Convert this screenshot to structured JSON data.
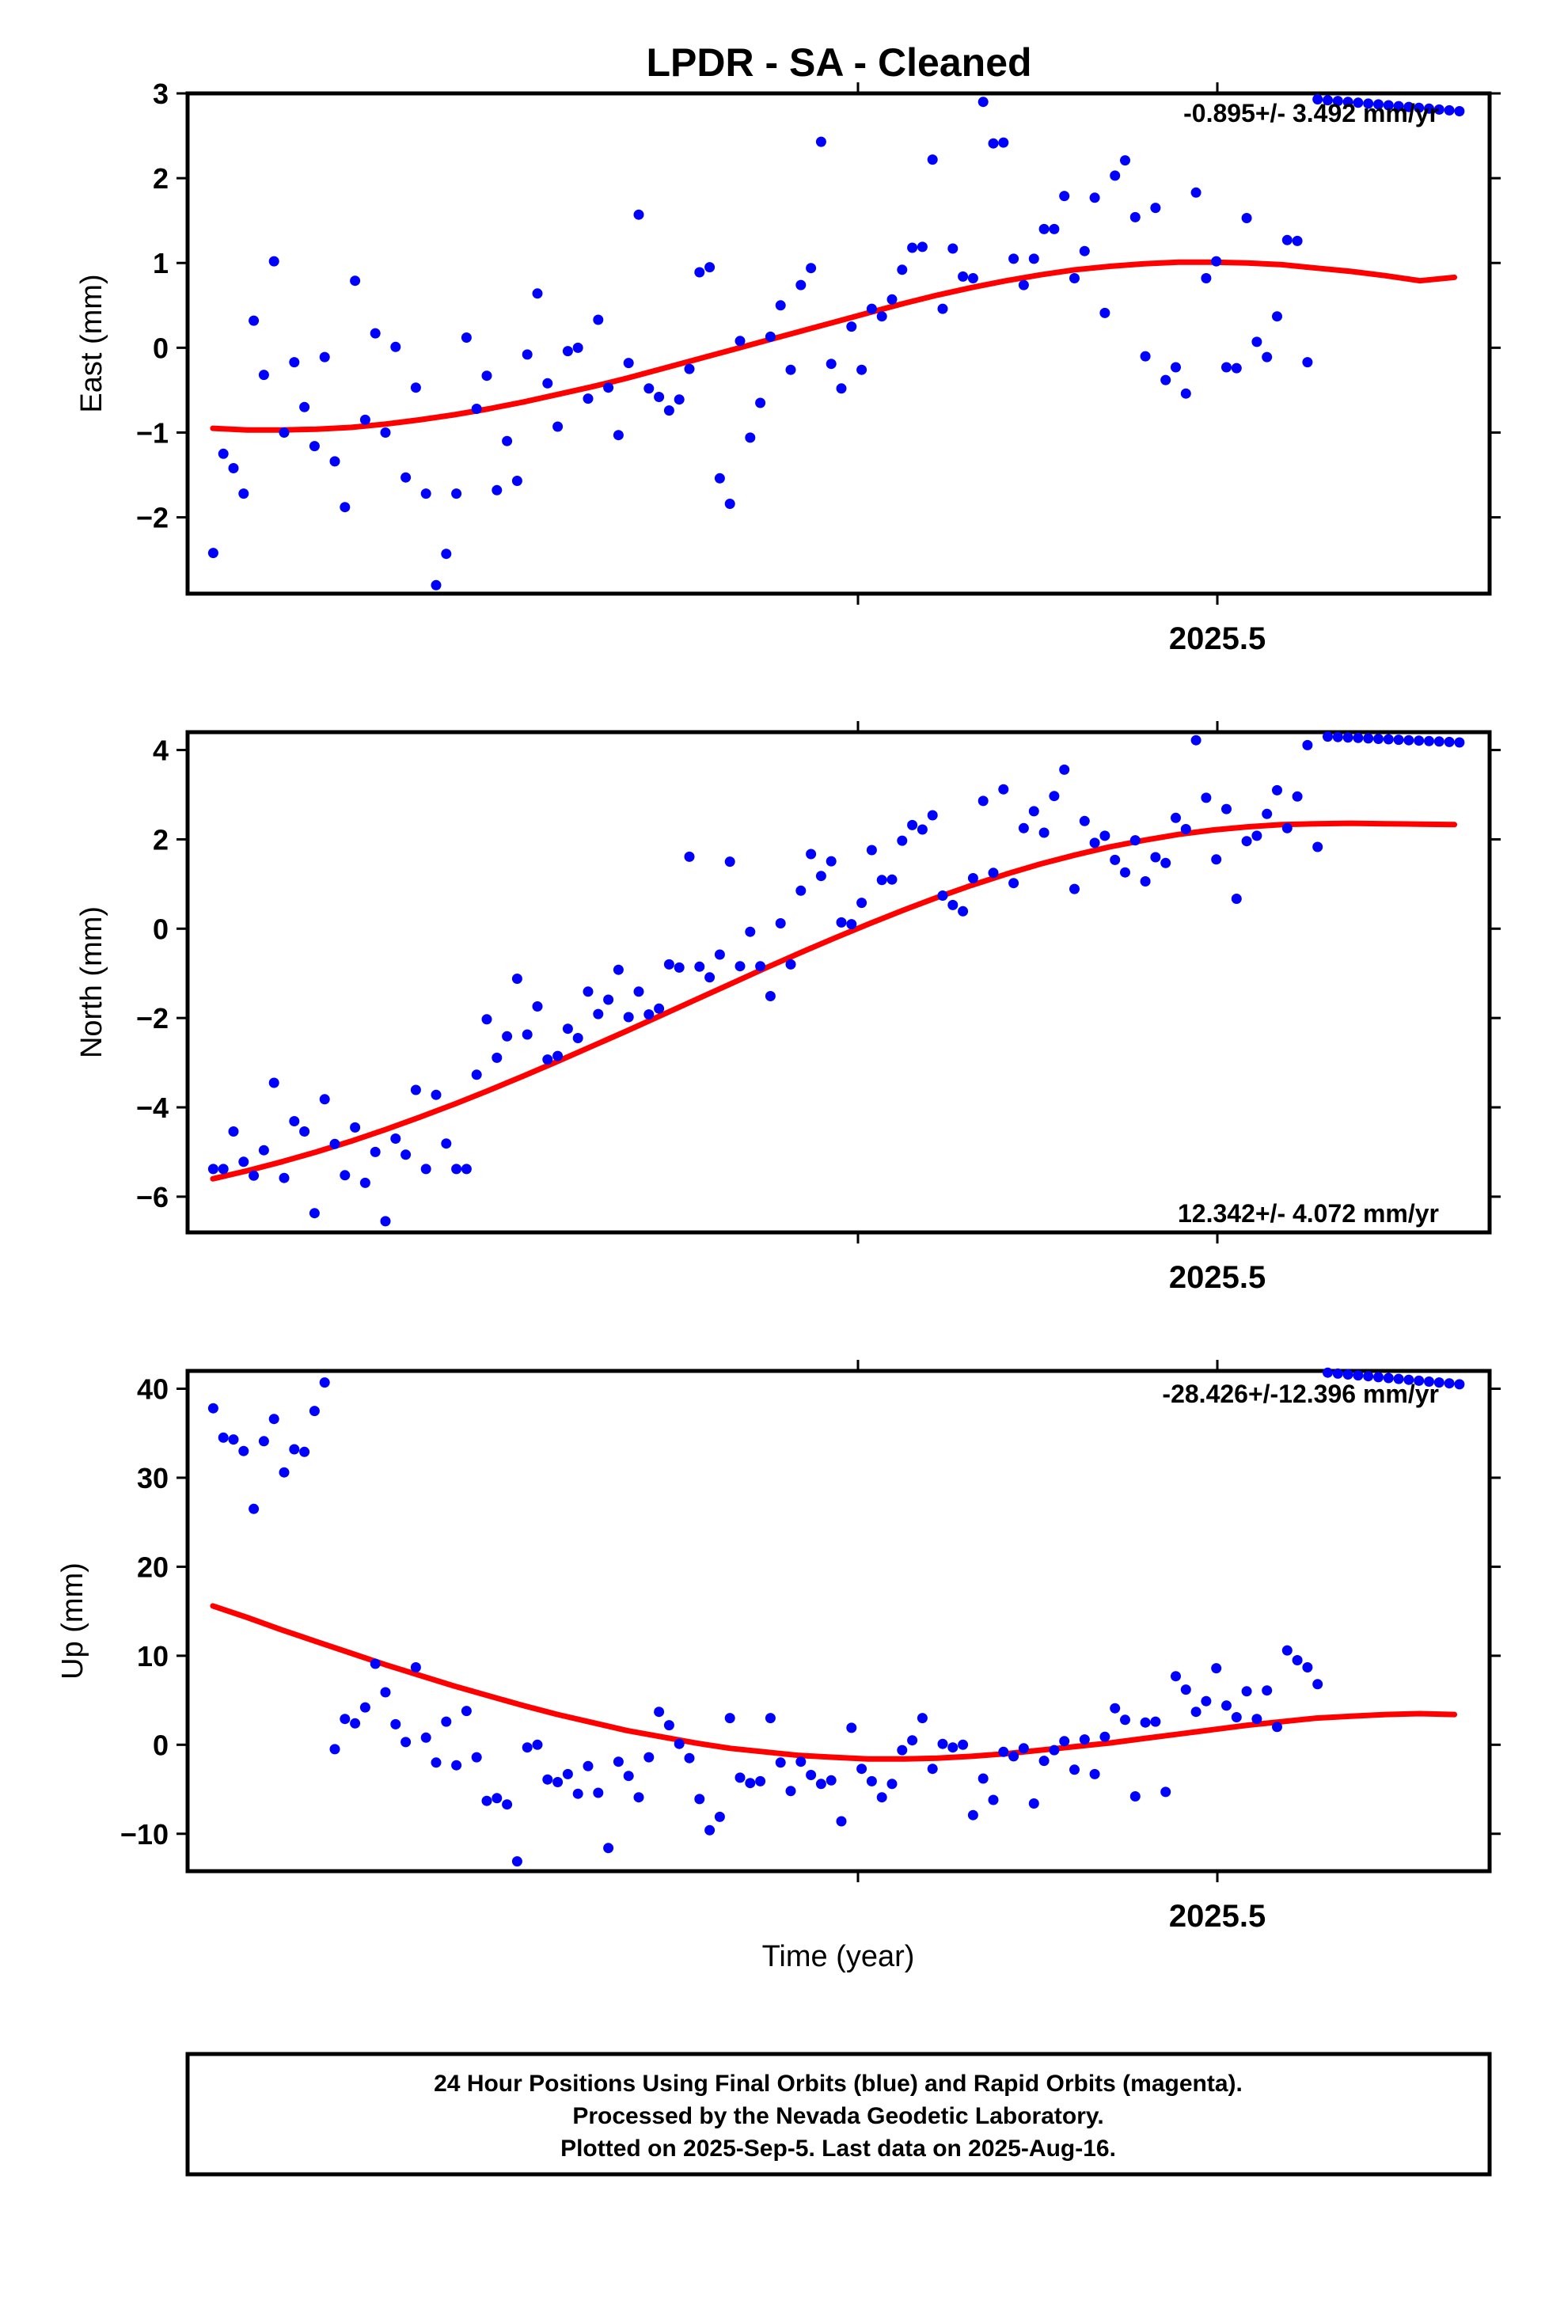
{
  "title": "LPDR  - SA - Cleaned",
  "xlabel": "Time (year)",
  "colors": {
    "points": "#0000ff",
    "fit": "#ff0000",
    "frame": "#000000"
  },
  "chart_data": [
    {
      "type": "scatter",
      "panel": "east",
      "ylabel": "East (mm)",
      "ylim": [
        -2.9,
        3.0
      ],
      "yticks": [
        -2,
        -1,
        0,
        1,
        2,
        3
      ],
      "xlim": [
        2025.0223,
        2025.6263
      ],
      "xticks": [
        2025.3333,
        2025.5,
        2025.8333
      ],
      "xtick_labels": [
        {
          "value": 2025.5,
          "label": "2025.5"
        }
      ],
      "rate": "-0.895+/- 3.492 mm/yr",
      "rate_position": "top-right",
      "x": [
        2025.0342,
        2025.0389,
        2025.0436,
        2025.0483,
        2025.053,
        2025.0577,
        2025.0624,
        2025.0671,
        2025.0718,
        2025.0765,
        2025.0812,
        2025.0859,
        2025.0906,
        2025.0953,
        2025.1,
        2025.1047,
        2025.1094,
        2025.1141,
        2025.1188,
        2025.1235,
        2025.1282,
        2025.1329,
        2025.1376,
        2025.1423,
        2025.147,
        2025.1517,
        2025.1564,
        2025.1611,
        2025.1658,
        2025.1705,
        2025.1752,
        2025.1799,
        2025.1846,
        2025.1893,
        2025.194,
        2025.1987,
        2025.2034,
        2025.2081,
        2025.2128,
        2025.2175,
        2025.2222,
        2025.2269,
        2025.2316,
        2025.2363,
        2025.241,
        2025.2457,
        2025.2504,
        2025.2551,
        2025.2598,
        2025.2645,
        2025.2692,
        2025.2739,
        2025.2786,
        2025.2833,
        2025.288,
        2025.2927,
        2025.2974,
        2025.3021,
        2025.3068,
        2025.3115,
        2025.3162,
        2025.3209,
        2025.3256,
        2025.3303,
        2025.335,
        2025.3397,
        2025.3444,
        2025.3491,
        2025.3538,
        2025.3585,
        2025.3632,
        2025.3679,
        2025.3726,
        2025.3773,
        2025.382,
        2025.3867,
        2025.3914,
        2025.3961,
        2025.4008,
        2025.4055,
        2025.4102,
        2025.4149,
        2025.4196,
        2025.4243,
        2025.429,
        2025.4337,
        2025.4384,
        2025.4431,
        2025.4478,
        2025.4525,
        2025.4572,
        2025.4619,
        2025.4666,
        2025.4713,
        2025.476,
        2025.4807,
        2025.4854,
        2025.4901,
        2025.4948,
        2025.4995,
        2025.5042,
        2025.5089,
        2025.5136,
        2025.5183,
        2025.523,
        2025.5277,
        2025.5324,
        2025.5371,
        2025.5418,
        2025.5465,
        2025.5512,
        2025.5559,
        2025.5606,
        2025.5653,
        2025.57,
        2025.5747,
        2025.5794,
        2025.5841,
        2025.5888,
        2025.5935,
        2025.5982,
        2025.6029,
        2025.6076,
        2025.6123
      ],
      "y": [
        -2.42,
        -1.25,
        -1.42,
        -1.72,
        0.32,
        -0.32,
        1.02,
        -1.0,
        -0.17,
        -0.7,
        -1.16,
        -0.11,
        -1.34,
        -1.88,
        0.79,
        -0.85,
        0.17,
        -1.0,
        0.01,
        -1.53,
        -0.47,
        -1.72,
        -2.8,
        -2.43,
        -1.72,
        0.12,
        -0.72,
        -0.33,
        -1.68,
        -1.1,
        -1.57,
        -0.08,
        0.64,
        -0.42,
        -0.93,
        -0.04,
        0.0,
        -0.6,
        0.33,
        -0.47,
        -1.03,
        -0.18,
        1.57,
        -0.48,
        -0.58,
        -0.74,
        -0.61,
        -0.25,
        0.89,
        0.95,
        -1.54,
        -1.84,
        0.08,
        -1.06,
        -0.65,
        0.13,
        0.5,
        -0.26,
        0.74,
        0.94,
        2.43,
        -0.19,
        -0.48,
        0.25,
        -0.26,
        0.46,
        0.37,
        0.57,
        0.92,
        1.18,
        1.19,
        2.22,
        0.46,
        1.17,
        0.84,
        0.82,
        2.9,
        2.41,
        2.42,
        1.05,
        0.74,
        1.05,
        1.4,
        1.4,
        1.79,
        0.82,
        1.14,
        1.77,
        0.41,
        2.03,
        2.21,
        1.54,
        -0.1,
        1.65,
        -0.38,
        -0.23,
        -0.54,
        1.83,
        0.82,
        1.02,
        -0.23,
        -0.24,
        1.53,
        0.07,
        -0.11,
        0.37,
        1.27,
        1.26,
        -0.17,
        2.93,
        2.92,
        2.91,
        2.9,
        2.89,
        2.88,
        2.87,
        2.86,
        2.85,
        2.84,
        2.83,
        2.82,
        2.81,
        2.8,
        2.79
      ],
      "fit_x": [
        2025.034,
        2025.05,
        2025.066,
        2025.082,
        2025.098,
        2025.114,
        2025.13,
        2025.146,
        2025.162,
        2025.178,
        2025.194,
        2025.21,
        2025.226,
        2025.242,
        2025.258,
        2025.274,
        2025.29,
        2025.306,
        2025.322,
        2025.338,
        2025.354,
        2025.37,
        2025.386,
        2025.402,
        2025.418,
        2025.434,
        2025.45,
        2025.466,
        2025.482,
        2025.498,
        2025.514,
        2025.53,
        2025.546,
        2025.562,
        2025.578,
        2025.594,
        2025.61
      ],
      "fit_y": [
        -0.95,
        -0.97,
        -0.97,
        -0.96,
        -0.94,
        -0.9,
        -0.85,
        -0.79,
        -0.72,
        -0.64,
        -0.55,
        -0.46,
        -0.36,
        -0.25,
        -0.14,
        -0.03,
        0.08,
        0.19,
        0.3,
        0.41,
        0.52,
        0.62,
        0.71,
        0.79,
        0.86,
        0.92,
        0.96,
        0.99,
        1.01,
        1.01,
        1.0,
        0.98,
        0.94,
        0.9,
        0.85,
        0.79,
        0.83
      ]
    },
    {
      "type": "scatter",
      "panel": "north",
      "ylabel": "North (mm)",
      "ylim": [
        -6.8,
        4.4
      ],
      "yticks": [
        -6,
        -4,
        -2,
        0,
        2,
        4
      ],
      "xlim": [
        2025.0223,
        2025.6263
      ],
      "xticks": [
        2025.3333,
        2025.5,
        2025.8333
      ],
      "xtick_labels": [
        {
          "value": 2025.5,
          "label": "2025.5"
        }
      ],
      "rate": "12.342+/- 4.072 mm/yr",
      "rate_position": "bottom-right",
      "x": [
        2025.0342,
        2025.0389,
        2025.0436,
        2025.0483,
        2025.053,
        2025.0577,
        2025.0624,
        2025.0671,
        2025.0718,
        2025.0765,
        2025.0812,
        2025.0859,
        2025.0906,
        2025.0953,
        2025.1,
        2025.1047,
        2025.1094,
        2025.1141,
        2025.1188,
        2025.1235,
        2025.1282,
        2025.1329,
        2025.1376,
        2025.1423,
        2025.147,
        2025.1517,
        2025.1564,
        2025.1611,
        2025.1658,
        2025.1705,
        2025.1752,
        2025.1799,
        2025.1846,
        2025.1893,
        2025.194,
        2025.1987,
        2025.2034,
        2025.2081,
        2025.2128,
        2025.2175,
        2025.2222,
        2025.2269,
        2025.2316,
        2025.2363,
        2025.241,
        2025.2457,
        2025.2504,
        2025.2551,
        2025.2598,
        2025.2645,
        2025.2692,
        2025.2739,
        2025.2786,
        2025.2833,
        2025.288,
        2025.2927,
        2025.2974,
        2025.3021,
        2025.3068,
        2025.3115,
        2025.3162,
        2025.3209,
        2025.3256,
        2025.3303,
        2025.335,
        2025.3397,
        2025.3444,
        2025.3491,
        2025.3538,
        2025.3585,
        2025.3632,
        2025.3679,
        2025.3726,
        2025.3773,
        2025.382,
        2025.3867,
        2025.3914,
        2025.3961,
        2025.4008,
        2025.4055,
        2025.4102,
        2025.4149,
        2025.4196,
        2025.4243,
        2025.429,
        2025.4337,
        2025.4384,
        2025.4431,
        2025.4478,
        2025.4525,
        2025.4572,
        2025.4619,
        2025.4666,
        2025.4713,
        2025.476,
        2025.4807,
        2025.4854,
        2025.4901,
        2025.4948,
        2025.4995,
        2025.5042,
        2025.5089,
        2025.5136,
        2025.5183,
        2025.523,
        2025.5277,
        2025.5324,
        2025.5371,
        2025.5418,
        2025.5465,
        2025.5512,
        2025.5559,
        2025.5606,
        2025.5653,
        2025.57,
        2025.5747,
        2025.5794,
        2025.5841,
        2025.5888,
        2025.5935,
        2025.5982,
        2025.6029,
        2025.6076,
        2025.6123
      ],
      "y": [
        -5.38,
        -5.38,
        -4.54,
        -5.22,
        -5.53,
        -4.96,
        -3.45,
        -5.58,
        -4.31,
        -4.54,
        -6.37,
        -3.82,
        -4.82,
        -5.52,
        -4.45,
        -5.69,
        -5.0,
        -6.55,
        -4.7,
        -5.06,
        -3.61,
        -5.38,
        -3.72,
        -4.81,
        -5.38,
        -5.38,
        -3.27,
        -2.03,
        -2.89,
        -2.41,
        -1.12,
        -2.37,
        -1.74,
        -2.93,
        -2.85,
        -2.24,
        -2.45,
        -1.41,
        -1.91,
        -1.59,
        -0.92,
        -1.98,
        -1.41,
        -1.92,
        -1.79,
        -0.8,
        -0.87,
        1.61,
        -0.85,
        -1.09,
        -0.58,
        1.5,
        -0.84,
        -0.07,
        -0.84,
        -1.51,
        0.12,
        -0.8,
        0.85,
        1.67,
        1.18,
        1.51,
        0.14,
        0.1,
        0.58,
        1.76,
        1.09,
        1.1,
        1.97,
        2.32,
        2.22,
        2.54,
        0.74,
        0.53,
        0.39,
        1.13,
        2.86,
        1.25,
        3.12,
        1.02,
        2.25,
        2.63,
        2.15,
        2.97,
        3.56,
        0.89,
        2.41,
        1.92,
        2.08,
        1.54,
        1.26,
        1.98,
        1.06,
        1.6,
        1.47,
        2.48,
        2.23,
        4.22,
        2.93,
        1.55,
        2.68,
        0.67,
        1.96,
        2.08,
        2.57,
        3.1,
        2.25,
        2.96,
        4.11,
        1.83,
        4.3,
        4.29,
        4.28,
        4.27,
        4.26,
        4.25,
        4.24,
        4.23,
        4.22,
        4.21,
        4.2,
        4.19,
        4.18,
        4.17
      ],
      "fit_x": [
        2025.034,
        2025.05,
        2025.066,
        2025.082,
        2025.098,
        2025.114,
        2025.13,
        2025.146,
        2025.162,
        2025.178,
        2025.194,
        2025.21,
        2025.226,
        2025.242,
        2025.258,
        2025.274,
        2025.29,
        2025.306,
        2025.322,
        2025.338,
        2025.354,
        2025.37,
        2025.386,
        2025.402,
        2025.418,
        2025.434,
        2025.45,
        2025.466,
        2025.482,
        2025.498,
        2025.514,
        2025.53,
        2025.546,
        2025.562,
        2025.578,
        2025.594,
        2025.61
      ],
      "fit_y": [
        -5.6,
        -5.42,
        -5.22,
        -5.0,
        -4.76,
        -4.5,
        -4.22,
        -3.93,
        -3.62,
        -3.3,
        -2.97,
        -2.63,
        -2.29,
        -1.94,
        -1.59,
        -1.24,
        -0.89,
        -0.55,
        -0.22,
        0.1,
        0.41,
        0.7,
        0.97,
        1.22,
        1.45,
        1.65,
        1.83,
        1.98,
        2.11,
        2.21,
        2.28,
        2.33,
        2.35,
        2.36,
        2.35,
        2.34,
        2.33
      ]
    },
    {
      "type": "scatter",
      "panel": "up",
      "ylabel": "Up (mm)",
      "ylim": [
        -14.2,
        42.0
      ],
      "yticks": [
        -10,
        0,
        10,
        20,
        30,
        40
      ],
      "xlim": [
        2025.0223,
        2025.6263
      ],
      "xticks": [
        2025.3333,
        2025.5,
        2025.8333
      ],
      "xtick_labels": [
        {
          "value": 2025.5,
          "label": "2025.5"
        }
      ],
      "rate": "-28.426+/-12.396 mm/yr",
      "rate_position": "top-right",
      "x": [
        2025.0342,
        2025.0389,
        2025.0436,
        2025.0483,
        2025.053,
        2025.0577,
        2025.0624,
        2025.0671,
        2025.0718,
        2025.0765,
        2025.0812,
        2025.0859,
        2025.0906,
        2025.0953,
        2025.1,
        2025.1047,
        2025.1094,
        2025.1141,
        2025.1188,
        2025.1235,
        2025.1282,
        2025.1329,
        2025.1376,
        2025.1423,
        2025.147,
        2025.1517,
        2025.1564,
        2025.1611,
        2025.1658,
        2025.1705,
        2025.1752,
        2025.1799,
        2025.1846,
        2025.1893,
        2025.194,
        2025.1987,
        2025.2034,
        2025.2081,
        2025.2128,
        2025.2175,
        2025.2222,
        2025.2269,
        2025.2316,
        2025.2363,
        2025.241,
        2025.2457,
        2025.2504,
        2025.2551,
        2025.2598,
        2025.2645,
        2025.2692,
        2025.2739,
        2025.2786,
        2025.2833,
        2025.288,
        2025.2927,
        2025.2974,
        2025.3021,
        2025.3068,
        2025.3115,
        2025.3162,
        2025.3209,
        2025.3256,
        2025.3303,
        2025.335,
        2025.3397,
        2025.3444,
        2025.3491,
        2025.3538,
        2025.3585,
        2025.3632,
        2025.3679,
        2025.3726,
        2025.3773,
        2025.382,
        2025.3867,
        2025.3914,
        2025.3961,
        2025.4008,
        2025.4055,
        2025.4102,
        2025.4149,
        2025.4196,
        2025.4243,
        2025.429,
        2025.4337,
        2025.4384,
        2025.4431,
        2025.4478,
        2025.4525,
        2025.4572,
        2025.4619,
        2025.4666,
        2025.4713,
        2025.476,
        2025.4807,
        2025.4854,
        2025.4901,
        2025.4948,
        2025.4995,
        2025.5042,
        2025.5089,
        2025.5136,
        2025.5183,
        2025.523,
        2025.5277,
        2025.5324,
        2025.5371,
        2025.5418,
        2025.5465,
        2025.5512,
        2025.5559,
        2025.5606,
        2025.5653,
        2025.57,
        2025.5747,
        2025.5794,
        2025.5841,
        2025.5888,
        2025.5935,
        2025.5982,
        2025.6029,
        2025.6076,
        2025.6123
      ],
      "y": [
        37.8,
        34.5,
        34.3,
        33.0,
        26.5,
        34.1,
        36.6,
        30.6,
        33.2,
        32.9,
        37.5,
        40.7,
        -0.5,
        2.9,
        2.4,
        4.2,
        9.1,
        5.9,
        2.3,
        0.3,
        8.7,
        0.8,
        -2.0,
        2.6,
        -2.3,
        3.8,
        -1.4,
        -6.3,
        -6.0,
        -6.7,
        -13.1,
        -0.3,
        0.0,
        -3.9,
        -4.2,
        -3.3,
        -5.5,
        -2.4,
        -5.4,
        -11.6,
        -1.9,
        -3.5,
        -5.9,
        -1.4,
        3.7,
        2.2,
        0.1,
        -1.5,
        -6.1,
        -9.6,
        -8.1,
        3.0,
        -3.7,
        -4.3,
        -4.1,
        3.0,
        -2.0,
        -5.2,
        -1.9,
        -3.4,
        -4.4,
        -4.0,
        -8.6,
        1.9,
        -2.7,
        -4.1,
        -5.9,
        -4.4,
        -0.6,
        0.5,
        3.0,
        -2.7,
        0.1,
        -0.3,
        0.0,
        -7.9,
        -3.8,
        -6.2,
        -0.8,
        -1.3,
        -0.4,
        -6.6,
        -1.8,
        -0.6,
        0.4,
        -2.8,
        0.6,
        -3.3,
        0.9,
        4.1,
        2.8,
        -5.8,
        2.5,
        2.6,
        -5.3,
        7.7,
        6.2,
        3.7,
        4.9,
        8.6,
        4.4,
        3.1,
        6.0,
        2.9,
        6.1,
        2.0,
        10.6,
        9.5,
        8.7,
        6.8,
        41.8,
        41.7,
        41.6,
        41.5,
        41.4,
        41.3,
        41.2,
        41.1,
        41.0,
        40.9,
        40.8,
        40.7,
        40.6,
        40.5
      ],
      "fit_x": [
        2025.034,
        2025.05,
        2025.066,
        2025.082,
        2025.098,
        2025.114,
        2025.13,
        2025.146,
        2025.162,
        2025.178,
        2025.194,
        2025.21,
        2025.226,
        2025.242,
        2025.258,
        2025.274,
        2025.29,
        2025.306,
        2025.322,
        2025.338,
        2025.354,
        2025.37,
        2025.386,
        2025.402,
        2025.418,
        2025.434,
        2025.45,
        2025.466,
        2025.482,
        2025.498,
        2025.514,
        2025.53,
        2025.546,
        2025.562,
        2025.578,
        2025.594,
        2025.61
      ],
      "fit_y": [
        15.6,
        14.3,
        12.9,
        11.6,
        10.3,
        9.0,
        7.8,
        6.6,
        5.5,
        4.4,
        3.4,
        2.5,
        1.6,
        0.9,
        0.2,
        -0.4,
        -0.8,
        -1.2,
        -1.4,
        -1.6,
        -1.6,
        -1.5,
        -1.3,
        -1.0,
        -0.6,
        -0.2,
        0.2,
        0.7,
        1.2,
        1.7,
        2.2,
        2.6,
        3.0,
        3.2,
        3.4,
        3.5,
        3.4
      ]
    }
  ],
  "footer": {
    "line1": "24 Hour Positions Using Final Orbits (blue) and Rapid Orbits (magenta).",
    "line2": "Processed by the Nevada Geodetic Laboratory.",
    "line3": "Plotted on 2025-Sep-5. Last data on 2025-Aug-16."
  }
}
